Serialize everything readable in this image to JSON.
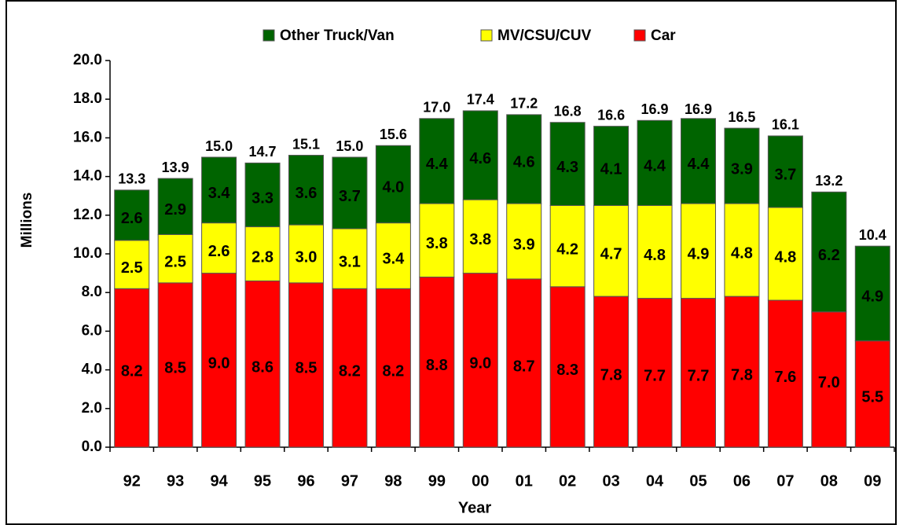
{
  "chart_data": {
    "type": "stacked-bar",
    "x_label": "Year",
    "y_label": "Millions",
    "categories": [
      "92",
      "93",
      "94",
      "95",
      "96",
      "97",
      "98",
      "99",
      "00",
      "01",
      "02",
      "03",
      "04",
      "05",
      "06",
      "07",
      "08",
      "09"
    ],
    "series": [
      {
        "name": "Car",
        "color": "#ff0000",
        "values": [
          8.2,
          8.5,
          9.0,
          8.6,
          8.5,
          8.2,
          8.2,
          8.8,
          9.0,
          8.7,
          8.3,
          7.8,
          7.7,
          7.7,
          7.8,
          7.6,
          7.0,
          5.5
        ],
        "value_labels": [
          "8.2",
          "8.5",
          "9.0",
          "8.6",
          "8.5",
          "8.2",
          "8.2",
          "8.8",
          "9.0",
          "8.7",
          "8.3",
          "7.8",
          "7.7",
          "7.7",
          "7.8",
          "7.6",
          "7.0",
          "5.5"
        ]
      },
      {
        "name": "MV/CSU/CUV",
        "color": "#ffff00",
        "values": [
          2.5,
          2.5,
          2.6,
          2.8,
          3.0,
          3.1,
          3.4,
          3.8,
          3.8,
          3.9,
          4.2,
          4.7,
          4.8,
          4.9,
          4.8,
          4.8,
          null,
          null
        ],
        "value_labels": [
          "2.5",
          "2.5",
          "2.6",
          "2.8",
          "3.0",
          "3.1",
          "3.4",
          "3.8",
          "3.8",
          "3.9",
          "4.2",
          "4.7",
          "4.8",
          "4.9",
          "4.8",
          "4.8",
          null,
          null
        ]
      },
      {
        "name": "Other Truck/Van",
        "color": "#006400",
        "values": [
          2.6,
          2.9,
          3.4,
          3.3,
          3.6,
          3.7,
          4.0,
          4.4,
          4.6,
          4.6,
          4.3,
          4.1,
          4.4,
          4.4,
          3.9,
          3.7,
          6.2,
          4.9
        ],
        "value_labels": [
          "2.6",
          "2.9",
          "3.4",
          "3.3",
          "3.6",
          "3.7",
          "4.0",
          "4.4",
          "4.6",
          "4.6",
          "4.3",
          "4.1",
          "4.4",
          "4.4",
          "3.9",
          "3.7",
          "6.2",
          "4.9"
        ]
      }
    ],
    "totals": [
      13.3,
      13.9,
      15.0,
      14.7,
      15.1,
      15.0,
      15.6,
      17.0,
      17.4,
      17.2,
      16.8,
      16.6,
      16.9,
      16.9,
      16.5,
      16.1,
      13.2,
      10.4
    ],
    "total_labels": [
      "13.3",
      "13.9",
      "15.0",
      "14.7",
      "15.1",
      "15.0",
      "15.6",
      "17.0",
      "17.4",
      "17.2",
      "16.8",
      "16.6",
      "16.9",
      "16.9",
      "16.5",
      "16.1",
      "13.2",
      "10.4"
    ],
    "ylim": [
      0,
      20
    ],
    "yticks": [
      {
        "value": 0,
        "label": "0.0"
      },
      {
        "value": 2,
        "label": "2.0"
      },
      {
        "value": 4,
        "label": "4.0"
      },
      {
        "value": 6,
        "label": "6.0"
      },
      {
        "value": 8,
        "label": "8.0"
      },
      {
        "value": 10,
        "label": "10.0"
      },
      {
        "value": 12,
        "label": "12.0"
      },
      {
        "value": 14,
        "label": "14.0"
      },
      {
        "value": 16,
        "label": "16.0"
      },
      {
        "value": 18,
        "label": "18.0"
      },
      {
        "value": 20,
        "label": "20.0"
      }
    ],
    "legend_order": [
      2,
      1,
      0
    ],
    "legend_position": "top"
  }
}
